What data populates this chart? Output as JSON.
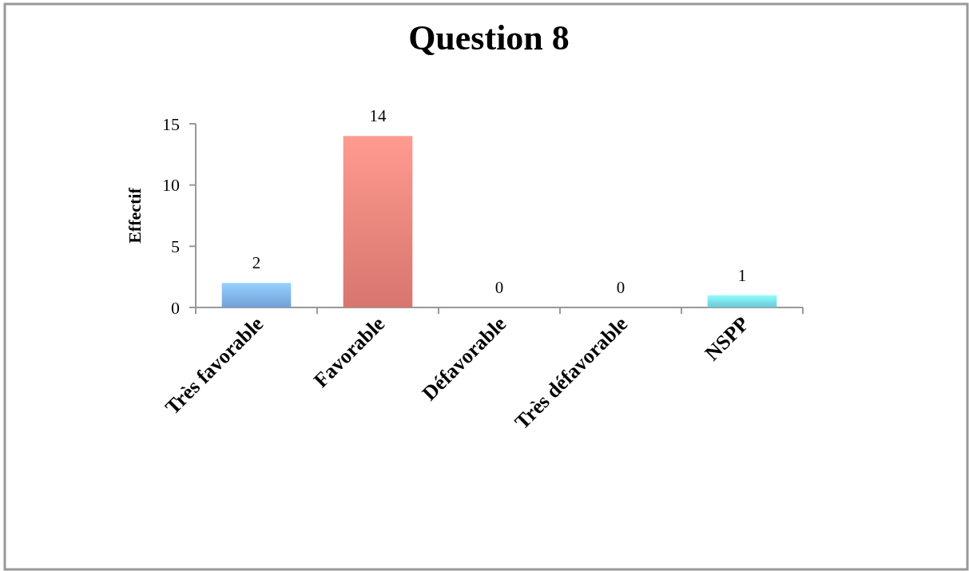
{
  "chart_data": {
    "type": "bar",
    "title": "Question 8",
    "ylabel": "Effectif",
    "categories": [
      "Très favorable",
      "Favorable",
      "Défavorable",
      "Très défavorable",
      "NSPP"
    ],
    "values": [
      2,
      14,
      0,
      0,
      1
    ],
    "colors": [
      "#7fb2ee",
      "#ee837a",
      "#9bbb59",
      "#8064a2",
      "#78dcee"
    ],
    "ylim": [
      0,
      15
    ],
    "yticks": [
      0,
      5,
      10,
      15
    ],
    "data_labels": true
  }
}
